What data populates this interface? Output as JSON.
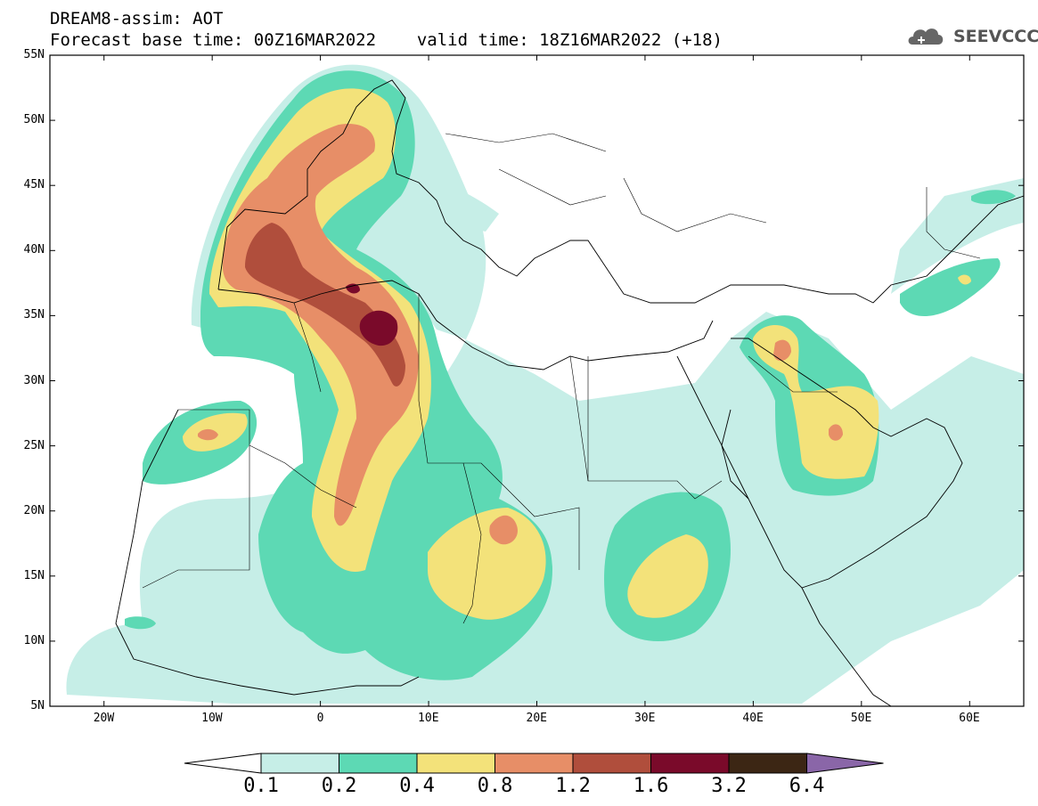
{
  "header": {
    "title": "DREAM8-assim: AOT",
    "base_time_label": "Forecast base time: 00Z16MAR2022",
    "valid_time_label": "valid time: 18Z16MAR2022 (+18)",
    "logo_text": "SEEVCCC"
  },
  "map": {
    "lat_labels": [
      "55N",
      "50N",
      "45N",
      "40N",
      "35N",
      "30N",
      "25N",
      "20N",
      "15N",
      "10N",
      "5N"
    ],
    "lon_labels": [
      "20W",
      "10W",
      "0",
      "10E",
      "20E",
      "30E",
      "40E",
      "50E",
      "60E"
    ],
    "lat_range": [
      5,
      55
    ],
    "lon_range": [
      -25,
      65
    ]
  },
  "legend": {
    "levels": [
      "0.1",
      "0.2",
      "0.4",
      "0.8",
      "1.2",
      "1.6",
      "3.2",
      "6.4"
    ],
    "colors": [
      "#ffffff",
      "#c6eee7",
      "#5dd9b4",
      "#f3e27a",
      "#e78e67",
      "#b04e3c",
      "#7a0a2a",
      "#3c2614",
      "#8a66a8"
    ]
  }
}
